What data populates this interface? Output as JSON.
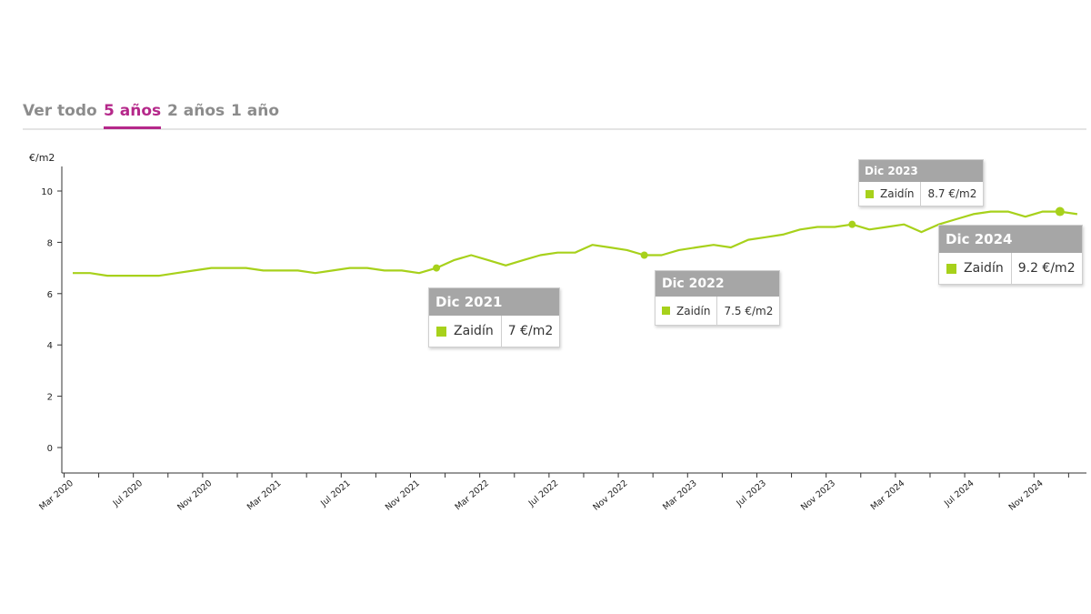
{
  "tabs": [
    {
      "label": "Ver todo",
      "active": false
    },
    {
      "label": "5 años",
      "active": true
    },
    {
      "label": "2 años",
      "active": false
    },
    {
      "label": "1 año",
      "active": false
    }
  ],
  "colors": {
    "series": "#a7d11b",
    "accent": "#b5288a",
    "tab_inactive": "#8c8c8c",
    "tooltip_header": "#a6a6a6"
  },
  "chart_data": {
    "type": "line",
    "ylabel": "€/m2",
    "ylim": [
      -1,
      11
    ],
    "yticks": [
      0,
      2,
      4,
      6,
      8,
      10
    ],
    "xticks": [
      "Mar 2020",
      "Jul 2020",
      "Nov 2020",
      "Mar 2021",
      "Jul 2021",
      "Nov 2021",
      "Mar 2022",
      "Jul 2022",
      "Nov 2022",
      "Mar 2023",
      "Jul 2023",
      "Nov 2023",
      "Mar 2024",
      "Jul 2024",
      "Nov 2024"
    ],
    "series": [
      {
        "name": "Zaidín",
        "x": [
          "2020-03",
          "2020-04",
          "2020-05",
          "2020-06",
          "2020-07",
          "2020-08",
          "2020-09",
          "2020-10",
          "2020-11",
          "2020-12",
          "2021-01",
          "2021-02",
          "2021-03",
          "2021-04",
          "2021-05",
          "2021-06",
          "2021-07",
          "2021-08",
          "2021-09",
          "2021-10",
          "2021-11",
          "2021-12",
          "2022-01",
          "2022-02",
          "2022-03",
          "2022-04",
          "2022-05",
          "2022-06",
          "2022-07",
          "2022-08",
          "2022-09",
          "2022-10",
          "2022-11",
          "2022-12",
          "2023-01",
          "2023-02",
          "2023-03",
          "2023-04",
          "2023-05",
          "2023-06",
          "2023-07",
          "2023-08",
          "2023-09",
          "2023-10",
          "2023-11",
          "2023-12",
          "2024-01",
          "2024-02",
          "2024-03",
          "2024-04",
          "2024-05",
          "2024-06",
          "2024-07",
          "2024-08",
          "2024-09",
          "2024-10",
          "2024-11",
          "2024-12",
          "2025-01"
        ],
        "values": [
          6.8,
          6.8,
          6.7,
          6.7,
          6.7,
          6.7,
          6.8,
          6.9,
          7.0,
          7.0,
          7.0,
          6.9,
          6.9,
          6.9,
          6.8,
          6.9,
          7.0,
          7.0,
          6.9,
          6.9,
          6.8,
          7.0,
          7.3,
          7.5,
          7.3,
          7.1,
          7.3,
          7.5,
          7.6,
          7.6,
          7.9,
          7.8,
          7.7,
          7.5,
          7.5,
          7.7,
          7.8,
          7.9,
          7.8,
          8.1,
          8.2,
          8.3,
          8.5,
          8.6,
          8.6,
          8.7,
          8.5,
          8.6,
          8.7,
          8.4,
          8.7,
          8.9,
          9.1,
          9.2,
          9.2,
          9.0,
          9.2,
          9.2,
          9.1
        ]
      }
    ],
    "highlighted": [
      {
        "x": "2021-12",
        "label": "Dic 2021",
        "value": 7.0,
        "value_text": "7 €/m2"
      },
      {
        "x": "2022-12",
        "label": "Dic 2022",
        "value": 7.5,
        "value_text": "7.5 €/m2"
      },
      {
        "x": "2023-12",
        "label": "Dic 2023",
        "value": 8.7,
        "value_text": "8.7 €/m2"
      },
      {
        "x": "2024-12",
        "label": "Dic 2024",
        "value": 9.2,
        "value_text": "9.2 €/m2"
      }
    ]
  }
}
